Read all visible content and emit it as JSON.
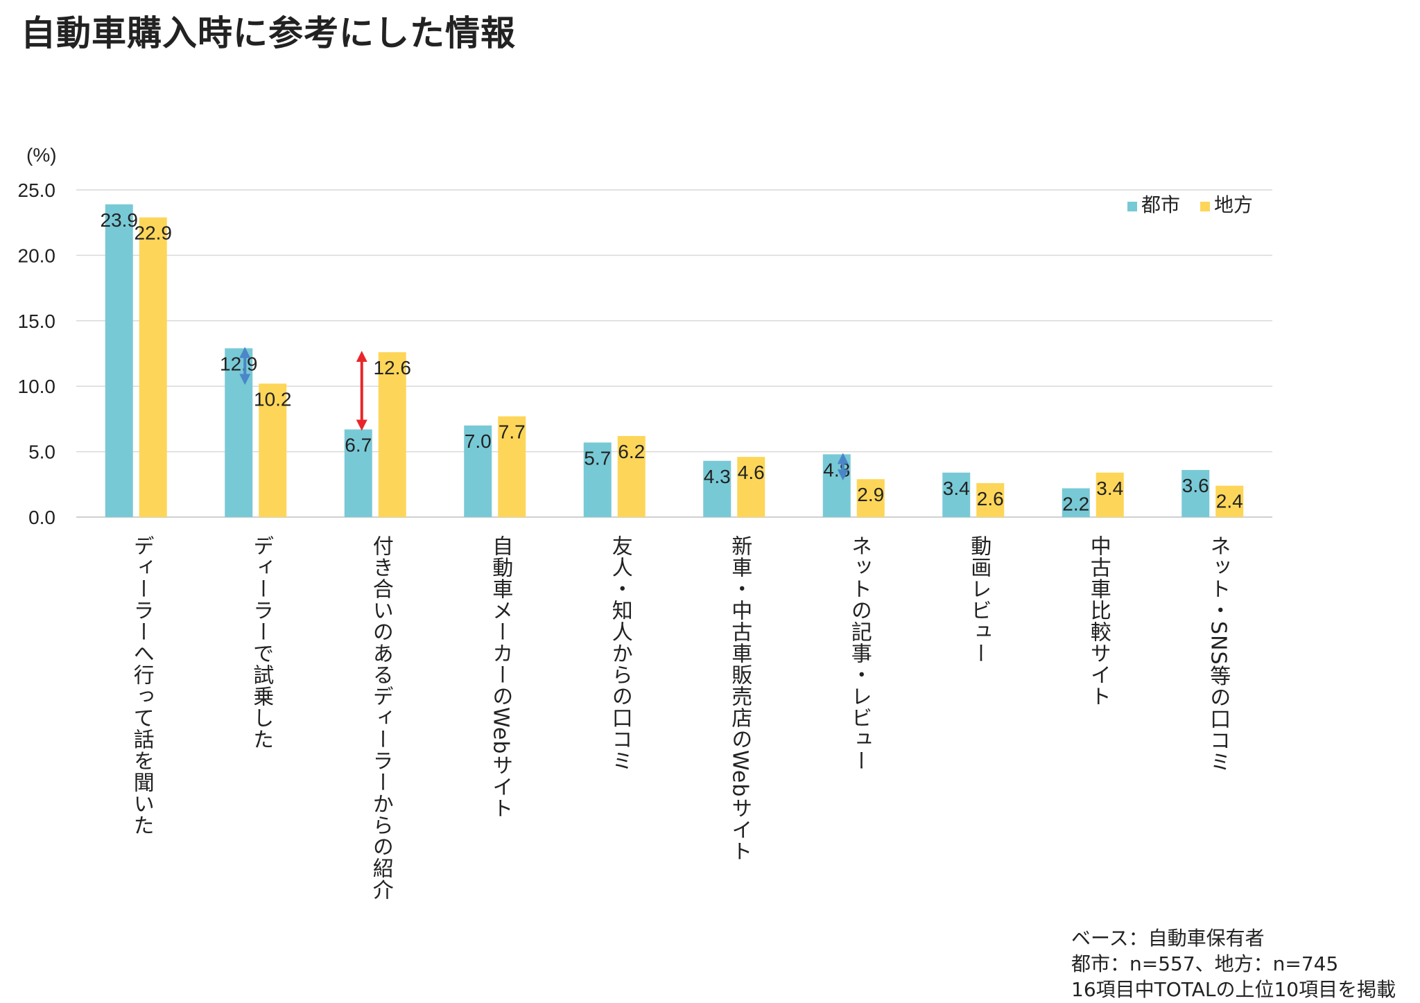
{
  "title": "自動車購入時に参考にした情報",
  "unit": "(%)",
  "colors": {
    "urban": "#78C9D6",
    "rural": "#FDD659",
    "arrow_red": "#E8262A",
    "arrow_blue": "#4A86C8",
    "grid": "#D9D9D9"
  },
  "chart_data": {
    "type": "bar",
    "title": "自動車購入時に参考にした情報",
    "ylabel": "(%)",
    "ylim": [
      0,
      25
    ],
    "yticks": [
      "0.0",
      "5.0",
      "10.0",
      "15.0",
      "20.0",
      "25.0"
    ],
    "categories": [
      "ディーラーへ行って話を聞いた",
      "ディーラーで試乗した",
      "付き合いのあるディーラーからの紹介",
      "自動車メーカーのWebサイト",
      "友人・知人からの口コミ",
      "新車・中古車販売店のWebサイト",
      "ネットの記事・レビュー",
      "動画レビュー",
      "中古車比較サイト",
      "ネット・SNS等の口コミ"
    ],
    "series": [
      {
        "name": "都市",
        "values": [
          23.9,
          12.9,
          6.7,
          7.0,
          5.7,
          4.3,
          4.8,
          3.4,
          2.2,
          3.6
        ],
        "labels": [
          "23.9",
          "12.9",
          "6.7",
          "7.0",
          "5.7",
          "4.3",
          "4.8",
          "3.4",
          "2.2",
          "3.6"
        ]
      },
      {
        "name": "地方",
        "values": [
          22.9,
          10.2,
          12.6,
          7.7,
          6.2,
          4.6,
          2.9,
          2.6,
          3.4,
          2.4
        ],
        "labels": [
          "22.9",
          "10.2",
          "12.6",
          "7.7",
          "6.2",
          "4.6",
          "2.9",
          "2.6",
          "3.4",
          "2.4"
        ]
      }
    ],
    "legend": "top-right",
    "arrows": [
      {
        "category_index": 1,
        "from": 12.9,
        "to": 10.2,
        "color": "blue"
      },
      {
        "category_index": 2,
        "from": 6.7,
        "to": 12.6,
        "color": "red"
      },
      {
        "category_index": 6,
        "from": 4.8,
        "to": 2.9,
        "color": "blue"
      }
    ]
  },
  "footnotes": [
    "ベース：自動車保有者",
    "都市：n=557、地方：n=745",
    "16項目中TOTALの上位10項目を掲載"
  ]
}
